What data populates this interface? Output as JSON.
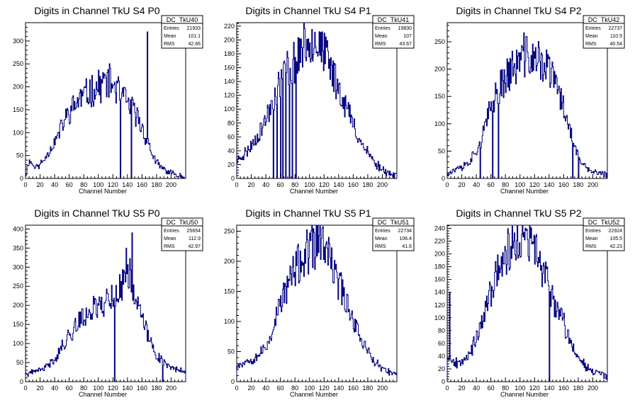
{
  "chart_data": [
    {
      "type": "histogram",
      "title": "Digits in Channel TkU S4 P0",
      "xlabel": "Channel Number",
      "ylabel": "",
      "xlim": [
        0,
        220
      ],
      "ylim": [
        0,
        340
      ],
      "xticks": [
        0,
        20,
        40,
        60,
        80,
        100,
        120,
        140,
        160,
        180,
        200
      ],
      "yticks": [
        0,
        50,
        100,
        150,
        200,
        250,
        300
      ],
      "stats": {
        "name": "DC_TkU40",
        "entries": "21933",
        "mean": "101.1",
        "rms": "42.66"
      },
      "profile": [
        [
          0,
          5
        ],
        [
          5,
          40
        ],
        [
          10,
          30
        ],
        [
          15,
          25
        ],
        [
          20,
          30
        ],
        [
          25,
          40
        ],
        [
          30,
          55
        ],
        [
          35,
          65
        ],
        [
          40,
          80
        ],
        [
          45,
          95
        ],
        [
          50,
          115
        ],
        [
          55,
          130
        ],
        [
          60,
          145
        ],
        [
          65,
          155
        ],
        [
          70,
          165
        ],
        [
          75,
          175
        ],
        [
          80,
          180
        ],
        [
          85,
          185
        ],
        [
          90,
          190
        ],
        [
          95,
          195
        ],
        [
          100,
          200
        ],
        [
          105,
          205
        ],
        [
          110,
          215
        ],
        [
          115,
          210
        ],
        [
          120,
          205
        ],
        [
          125,
          195
        ],
        [
          130,
          185
        ],
        [
          135,
          175
        ],
        [
          140,
          165
        ],
        [
          145,
          155
        ],
        [
          150,
          145
        ],
        [
          155,
          130
        ],
        [
          160,
          110
        ],
        [
          165,
          90
        ],
        [
          170,
          70
        ],
        [
          175,
          50
        ],
        [
          180,
          35
        ],
        [
          185,
          25
        ],
        [
          190,
          20
        ],
        [
          195,
          15
        ],
        [
          200,
          12
        ],
        [
          205,
          10
        ],
        [
          210,
          8
        ],
        [
          215,
          5
        ],
        [
          220,
          3
        ]
      ],
      "spikes": [
        [
          167,
          320
        ],
        [
          130,
          0
        ],
        [
          145,
          0
        ]
      ],
      "seed": 11
    },
    {
      "type": "histogram",
      "title": "Digits in Channel TkU S4 P1",
      "xlabel": "Channel Number",
      "ylabel": "",
      "xlim": [
        0,
        220
      ],
      "ylim": [
        0,
        225
      ],
      "xticks": [
        0,
        20,
        40,
        60,
        80,
        100,
        120,
        140,
        160,
        180,
        200
      ],
      "yticks": [
        0,
        20,
        40,
        60,
        80,
        100,
        120,
        140,
        160,
        180,
        200,
        220
      ],
      "stats": {
        "name": "DC_TkU41",
        "entries": "19830",
        "mean": "107",
        "rms": "43.67"
      },
      "profile": [
        [
          0,
          25
        ],
        [
          5,
          30
        ],
        [
          10,
          35
        ],
        [
          15,
          40
        ],
        [
          20,
          48
        ],
        [
          25,
          55
        ],
        [
          30,
          65
        ],
        [
          35,
          75
        ],
        [
          40,
          85
        ],
        [
          45,
          100
        ],
        [
          50,
          115
        ],
        [
          55,
          125
        ],
        [
          60,
          140
        ],
        [
          65,
          150
        ],
        [
          70,
          160
        ],
        [
          75,
          165
        ],
        [
          80,
          170
        ],
        [
          85,
          180
        ],
        [
          90,
          188
        ],
        [
          95,
          195
        ],
        [
          100,
          200
        ],
        [
          105,
          205
        ],
        [
          110,
          200
        ],
        [
          115,
          190
        ],
        [
          120,
          180
        ],
        [
          125,
          170
        ],
        [
          130,
          158
        ],
        [
          135,
          145
        ],
        [
          140,
          132
        ],
        [
          145,
          118
        ],
        [
          150,
          105
        ],
        [
          155,
          92
        ],
        [
          160,
          78
        ],
        [
          165,
          65
        ],
        [
          170,
          55
        ],
        [
          175,
          45
        ],
        [
          180,
          38
        ],
        [
          185,
          30
        ],
        [
          190,
          22
        ],
        [
          195,
          18
        ],
        [
          200,
          14
        ],
        [
          205,
          10
        ],
        [
          210,
          8
        ],
        [
          215,
          5
        ],
        [
          220,
          3
        ]
      ],
      "spikes": [
        [
          50,
          0
        ],
        [
          55,
          0
        ],
        [
          60,
          0
        ],
        [
          63,
          0
        ],
        [
          67,
          0
        ],
        [
          72,
          0
        ],
        [
          76,
          0
        ],
        [
          81,
          0
        ]
      ],
      "seed": 23
    },
    {
      "type": "histogram",
      "title": "Digits in Channel TkU S4 P2",
      "xlabel": "Channel Number",
      "ylabel": "",
      "xlim": [
        0,
        220
      ],
      "ylim": [
        0,
        285
      ],
      "xticks": [
        0,
        20,
        40,
        60,
        80,
        100,
        120,
        140,
        160,
        180,
        200
      ],
      "yticks": [
        0,
        50,
        100,
        150,
        200,
        250
      ],
      "stats": {
        "name": "DC_TkU42",
        "entries": "22737",
        "mean": "110.5",
        "rms": "40.54"
      },
      "profile": [
        [
          0,
          10
        ],
        [
          5,
          12
        ],
        [
          10,
          15
        ],
        [
          15,
          18
        ],
        [
          20,
          20
        ],
        [
          25,
          25
        ],
        [
          30,
          30
        ],
        [
          35,
          40
        ],
        [
          40,
          50
        ],
        [
          45,
          65
        ],
        [
          50,
          85
        ],
        [
          55,
          105
        ],
        [
          60,
          130
        ],
        [
          65,
          150
        ],
        [
          70,
          165
        ],
        [
          75,
          175
        ],
        [
          80,
          185
        ],
        [
          85,
          195
        ],
        [
          90,
          200
        ],
        [
          95,
          205
        ],
        [
          100,
          215
        ],
        [
          105,
          225
        ],
        [
          110,
          225
        ],
        [
          115,
          220
        ],
        [
          120,
          215
        ],
        [
          125,
          215
        ],
        [
          130,
          210
        ],
        [
          135,
          205
        ],
        [
          140,
          200
        ],
        [
          145,
          185
        ],
        [
          150,
          170
        ],
        [
          155,
          150
        ],
        [
          160,
          130
        ],
        [
          165,
          110
        ],
        [
          170,
          85
        ],
        [
          175,
          60
        ],
        [
          180,
          40
        ],
        [
          185,
          25
        ],
        [
          190,
          20
        ],
        [
          195,
          15
        ],
        [
          200,
          12
        ],
        [
          205,
          10
        ],
        [
          210,
          10
        ],
        [
          215,
          8
        ],
        [
          220,
          5
        ]
      ],
      "spikes": [
        [
          45,
          0
        ],
        [
          62,
          0
        ],
        [
          70,
          0
        ],
        [
          172,
          0
        ],
        [
          180,
          0
        ]
      ],
      "seed": 37
    },
    {
      "type": "histogram",
      "title": "Digits in Channel TkU S5 P0",
      "xlabel": "Channel Number",
      "ylabel": "",
      "xlim": [
        0,
        220
      ],
      "ylim": [
        0,
        410
      ],
      "xticks": [
        0,
        20,
        40,
        60,
        80,
        100,
        120,
        140,
        160,
        180,
        200
      ],
      "yticks": [
        0,
        50,
        100,
        150,
        200,
        250,
        300,
        350,
        400
      ],
      "stats": {
        "name": "DC_TkU50",
        "entries": "25654",
        "mean": "112.9",
        "rms": "42.97"
      },
      "profile": [
        [
          0,
          20
        ],
        [
          5,
          20
        ],
        [
          10,
          25
        ],
        [
          15,
          30
        ],
        [
          20,
          30
        ],
        [
          25,
          35
        ],
        [
          30,
          40
        ],
        [
          35,
          50
        ],
        [
          40,
          60
        ],
        [
          45,
          75
        ],
        [
          50,
          90
        ],
        [
          55,
          105
        ],
        [
          60,
          120
        ],
        [
          65,
          135
        ],
        [
          70,
          150
        ],
        [
          75,
          160
        ],
        [
          80,
          170
        ],
        [
          85,
          180
        ],
        [
          90,
          190
        ],
        [
          95,
          195
        ],
        [
          100,
          200
        ],
        [
          105,
          205
        ],
        [
          110,
          210
        ],
        [
          115,
          220
        ],
        [
          120,
          225
        ],
        [
          125,
          225
        ],
        [
          130,
          240
        ],
        [
          135,
          260
        ],
        [
          140,
          300
        ],
        [
          145,
          270
        ],
        [
          150,
          230
        ],
        [
          155,
          190
        ],
        [
          160,
          170
        ],
        [
          165,
          140
        ],
        [
          170,
          110
        ],
        [
          175,
          90
        ],
        [
          180,
          70
        ],
        [
          185,
          60
        ],
        [
          190,
          50
        ],
        [
          195,
          45
        ],
        [
          200,
          40
        ],
        [
          205,
          35
        ],
        [
          210,
          30
        ],
        [
          215,
          30
        ],
        [
          220,
          25
        ]
      ],
      "spikes": [
        [
          138,
          350
        ],
        [
          146,
          390
        ],
        [
          122,
          0
        ],
        [
          188,
          0
        ]
      ],
      "seed": 41
    },
    {
      "type": "histogram",
      "title": "Digits in Channel TkU S5 P1",
      "xlabel": "Channel Number",
      "ylabel": "",
      "xlim": [
        0,
        220
      ],
      "ylim": [
        0,
        260
      ],
      "xticks": [
        0,
        20,
        40,
        60,
        80,
        100,
        120,
        140,
        160,
        180,
        200
      ],
      "yticks": [
        0,
        50,
        100,
        150,
        200,
        250
      ],
      "stats": {
        "name": "DC_TkU51",
        "entries": "22734",
        "mean": "106.4",
        "rms": "41.6"
      },
      "profile": [
        [
          0,
          28
        ],
        [
          5,
          30
        ],
        [
          10,
          33
        ],
        [
          15,
          35
        ],
        [
          20,
          38
        ],
        [
          25,
          40
        ],
        [
          30,
          45
        ],
        [
          35,
          50
        ],
        [
          40,
          55
        ],
        [
          45,
          70
        ],
        [
          50,
          90
        ],
        [
          55,
          110
        ],
        [
          60,
          130
        ],
        [
          65,
          145
        ],
        [
          70,
          160
        ],
        [
          75,
          175
        ],
        [
          80,
          185
        ],
        [
          85,
          195
        ],
        [
          90,
          200
        ],
        [
          95,
          210
        ],
        [
          100,
          215
        ],
        [
          105,
          222
        ],
        [
          110,
          230
        ],
        [
          115,
          235
        ],
        [
          120,
          225
        ],
        [
          125,
          210
        ],
        [
          130,
          195
        ],
        [
          135,
          180
        ],
        [
          140,
          165
        ],
        [
          145,
          150
        ],
        [
          150,
          135
        ],
        [
          155,
          120
        ],
        [
          160,
          105
        ],
        [
          165,
          90
        ],
        [
          170,
          75
        ],
        [
          175,
          62
        ],
        [
          180,
          50
        ],
        [
          185,
          40
        ],
        [
          190,
          32
        ],
        [
          195,
          26
        ],
        [
          200,
          22
        ],
        [
          205,
          18
        ],
        [
          210,
          15
        ],
        [
          215,
          12
        ],
        [
          220,
          10
        ]
      ],
      "spikes": [],
      "seed": 53
    },
    {
      "type": "histogram",
      "title": "Digits in Channel TkU S5 P2",
      "xlabel": "Channel Number",
      "ylabel": "",
      "xlim": [
        0,
        220
      ],
      "ylim": [
        0,
        245
      ],
      "xticks": [
        0,
        20,
        40,
        60,
        80,
        100,
        120,
        140,
        160,
        180,
        200
      ],
      "yticks": [
        0,
        20,
        40,
        60,
        80,
        100,
        120,
        140,
        160,
        180,
        200,
        220,
        240
      ],
      "stats": {
        "name": "DC_TkU52",
        "entries": "22924",
        "mean": "105.5",
        "rms": "42.23"
      },
      "profile": [
        [
          0,
          40
        ],
        [
          5,
          35
        ],
        [
          10,
          30
        ],
        [
          15,
          30
        ],
        [
          20,
          35
        ],
        [
          25,
          40
        ],
        [
          30,
          45
        ],
        [
          35,
          55
        ],
        [
          40,
          65
        ],
        [
          45,
          80
        ],
        [
          50,
          100
        ],
        [
          55,
          120
        ],
        [
          60,
          140
        ],
        [
          65,
          160
        ],
        [
          70,
          175
        ],
        [
          75,
          190
        ],
        [
          80,
          200
        ],
        [
          85,
          205
        ],
        [
          90,
          210
        ],
        [
          95,
          215
        ],
        [
          100,
          220
        ],
        [
          105,
          222
        ],
        [
          110,
          220
        ],
        [
          115,
          215
        ],
        [
          120,
          205
        ],
        [
          125,
          195
        ],
        [
          130,
          180
        ],
        [
          135,
          165
        ],
        [
          140,
          150
        ],
        [
          145,
          135
        ],
        [
          150,
          120
        ],
        [
          155,
          105
        ],
        [
          160,
          90
        ],
        [
          165,
          75
        ],
        [
          170,
          62
        ],
        [
          175,
          50
        ],
        [
          180,
          40
        ],
        [
          185,
          32
        ],
        [
          190,
          26
        ],
        [
          195,
          22
        ],
        [
          200,
          18
        ],
        [
          205,
          15
        ],
        [
          210,
          12
        ],
        [
          215,
          10
        ],
        [
          220,
          8
        ]
      ],
      "spikes": [
        [
          3,
          140
        ],
        [
          140,
          0
        ]
      ],
      "seed": 67
    }
  ]
}
